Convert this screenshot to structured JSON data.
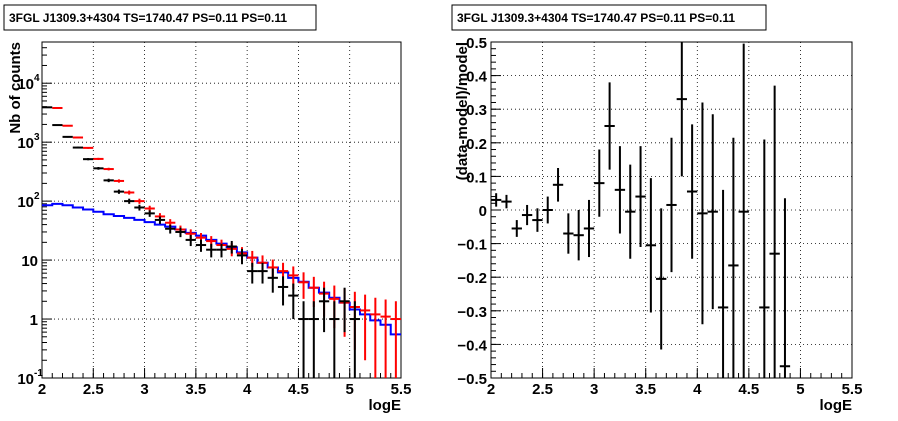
{
  "chart_data": [
    {
      "type": "line",
      "title": "3FGL J1309.3+4304 TS=1740.47 PS=0.11 PS=0.11",
      "xlabel": "logE",
      "ylabel": "Nb of counts",
      "xlim": [
        2,
        5.5
      ],
      "ylim": [
        0.1,
        50000
      ],
      "yscale": "log",
      "grid": true,
      "x_ticks": [
        "2",
        "2.5",
        "3",
        "3.5",
        "4",
        "4.5",
        "5",
        "5.5"
      ],
      "y_ticks": [
        {
          "value": 0.1,
          "label": "10",
          "exp": "-1"
        },
        {
          "value": 1,
          "label": "1",
          "exp": ""
        },
        {
          "value": 10,
          "label": "10",
          "exp": ""
        },
        {
          "value": 100,
          "label": "10",
          "exp": "2"
        },
        {
          "value": 1000,
          "label": "10",
          "exp": "3"
        },
        {
          "value": 10000,
          "label": "10",
          "exp": "4"
        }
      ],
      "bin_width": 0.1,
      "series": [
        {
          "name": "",
          "style": "step",
          "color": "#0000ff",
          "x": [
            2.05,
            2.15,
            2.25,
            2.35,
            2.45,
            2.55,
            2.65,
            2.75,
            2.85,
            2.95,
            3.05,
            3.15,
            3.25,
            3.35,
            3.45,
            3.55,
            3.65,
            3.75,
            3.85,
            3.95,
            4.05,
            4.15,
            4.25,
            4.35,
            4.45,
            4.55,
            4.65,
            4.75,
            4.85,
            4.95,
            5.05,
            5.15,
            5.25,
            5.35,
            5.45
          ],
          "y": [
            85,
            90,
            85,
            78,
            72,
            66,
            60,
            56,
            52,
            48,
            44,
            40,
            37,
            33,
            29,
            26,
            22,
            19,
            16.5,
            13.5,
            11,
            9,
            7.5,
            6.2,
            5.0,
            4.3,
            3.4,
            2.8,
            2.3,
            1.9,
            1.45,
            1.2,
            0.95,
            0.8,
            0.55
          ]
        },
        {
          "name": "",
          "style": "errorbar",
          "color": "#ff0000",
          "x": [
            2.15,
            2.25,
            2.35,
            2.45,
            2.55,
            2.65,
            2.75,
            2.85,
            2.95,
            3.05,
            3.15,
            3.25,
            3.35,
            3.45,
            3.55,
            3.65,
            3.75,
            3.85,
            3.95,
            4.05,
            4.15,
            4.25,
            4.35,
            4.45,
            4.55,
            4.65,
            4.75,
            4.85,
            4.95,
            5.05,
            5.15,
            5.25,
            5.35,
            5.45
          ],
          "y": [
            3800,
            1900,
            1200,
            800,
            520,
            350,
            220,
            140,
            100,
            75,
            55,
            43,
            33,
            28,
            24,
            21,
            18,
            15.5,
            13,
            11,
            9,
            7.5,
            6.5,
            5.5,
            4.2,
            3.4,
            2.7,
            2.2,
            1.9,
            1.6,
            1.4,
            1.2,
            1.1,
            1.0
          ],
          "yerr_low": [
            60,
            43,
            34,
            28,
            22,
            18,
            14,
            11,
            10,
            8.5,
            7.5,
            6.5,
            5.5,
            5.2,
            4.8,
            4.5,
            4.2,
            3.9,
            3.6,
            3.3,
            3.0,
            2.7,
            2.5,
            2.3,
            2.0,
            1.8,
            1.6,
            1.5,
            1.4,
            1.3,
            1.2,
            1.1,
            1.05,
            1.0
          ],
          "yerr_high": [
            60,
            43,
            34,
            28,
            22,
            18,
            14,
            11,
            10,
            8.5,
            7.5,
            6.5,
            5.5,
            5.2,
            4.8,
            4.5,
            4.2,
            3.9,
            3.6,
            3.3,
            3.0,
            2.7,
            2.5,
            2.3,
            2.0,
            1.8,
            1.6,
            1.5,
            1.4,
            1.3,
            1.2,
            1.1,
            1.05,
            1.0
          ]
        },
        {
          "name": "",
          "style": "errorbar",
          "color": "#000000",
          "x": [
            2.05,
            2.15,
            2.25,
            2.35,
            2.45,
            2.55,
            2.65,
            2.75,
            2.85,
            2.95,
            3.05,
            3.15,
            3.25,
            3.35,
            3.45,
            3.55,
            3.65,
            3.75,
            3.85,
            3.95,
            4.05,
            4.15,
            4.25,
            4.35,
            4.45,
            4.55,
            4.65,
            4.75,
            4.85,
            4.95,
            5.05
          ],
          "y": [
            3900,
            1950,
            1230,
            810,
            515,
            360,
            225,
            145,
            100,
            78,
            62,
            48,
            34,
            30,
            22,
            18,
            15,
            15,
            17,
            12,
            6.5,
            6.5,
            5,
            3.5,
            2.5,
            1,
            1,
            2,
            1,
            2,
            1
          ],
          "yerr_low": [
            62,
            44,
            35,
            28,
            22,
            19,
            15,
            12,
            10,
            8.8,
            7.9,
            6.9,
            5.8,
            5.5,
            4.7,
            4.2,
            3.9,
            3.9,
            4.1,
            3.5,
            2.5,
            2.5,
            2.2,
            1.8,
            1.5,
            1,
            1,
            1.4,
            1,
            1.4,
            1
          ],
          "yerr_high": [
            62,
            44,
            35,
            28,
            22,
            19,
            15,
            12,
            10,
            8.8,
            7.9,
            6.9,
            5.8,
            5.5,
            4.7,
            4.2,
            3.9,
            3.9,
            4.1,
            3.5,
            2.5,
            2.5,
            2.2,
            1.8,
            1.5,
            1,
            1,
            1.4,
            1,
            1.4,
            1
          ]
        }
      ]
    },
    {
      "type": "scatter",
      "title": "3FGL J1309.3+4304 TS=1740.47 PS=0.11 PS=0.11",
      "xlabel": "logE",
      "ylabel": "(data-model)/model",
      "xlim": [
        2,
        5.5
      ],
      "ylim": [
        -0.5,
        0.5
      ],
      "grid": true,
      "x_ticks": [
        "2",
        "2.5",
        "3",
        "3.5",
        "4",
        "4.5",
        "5",
        "5.5"
      ],
      "y_ticks": [
        "−0.5",
        "−0.4",
        "−0.3",
        "−0.2",
        "−0.1",
        "0",
        "0.1",
        "0.2",
        "0.3",
        "0.4",
        "0.5"
      ],
      "bin_width": 0.1,
      "series": [
        {
          "name": "",
          "style": "errorbar",
          "color": "#000000",
          "x": [
            2.05,
            2.15,
            2.25,
            2.35,
            2.45,
            2.55,
            2.65,
            2.75,
            2.85,
            2.95,
            3.05,
            3.15,
            3.25,
            3.35,
            3.45,
            3.55,
            3.65,
            3.75,
            3.85,
            3.95,
            4.05,
            4.15,
            4.25,
            4.35,
            4.45,
            4.65,
            4.75,
            4.85
          ],
          "y": [
            0.03,
            0.025,
            -0.055,
            -0.015,
            -0.03,
            0.0,
            0.075,
            -0.07,
            -0.075,
            -0.055,
            0.08,
            0.25,
            0.06,
            -0.005,
            0.04,
            -0.105,
            -0.205,
            0.015,
            0.33,
            0.055,
            -0.01,
            -0.005,
            -0.29,
            -0.165,
            -0.005,
            -0.29,
            -0.13,
            -0.465
          ],
          "yerr_low": [
            0.02,
            0.02,
            0.025,
            0.03,
            0.035,
            0.04,
            0.05,
            0.06,
            0.075,
            0.085,
            0.1,
            0.13,
            0.13,
            0.14,
            0.15,
            0.2,
            0.21,
            0.2,
            0.23,
            0.2,
            0.33,
            0.29,
            0.35,
            0.38,
            0.5,
            0.5,
            0.5,
            0.5
          ],
          "yerr_high": [
            0.02,
            0.02,
            0.025,
            0.03,
            0.035,
            0.04,
            0.05,
            0.06,
            0.075,
            0.085,
            0.1,
            0.13,
            0.13,
            0.14,
            0.15,
            0.2,
            0.21,
            0.2,
            0.23,
            0.2,
            0.33,
            0.29,
            0.35,
            0.38,
            0.5,
            0.5,
            0.5,
            0.5
          ]
        }
      ]
    }
  ]
}
